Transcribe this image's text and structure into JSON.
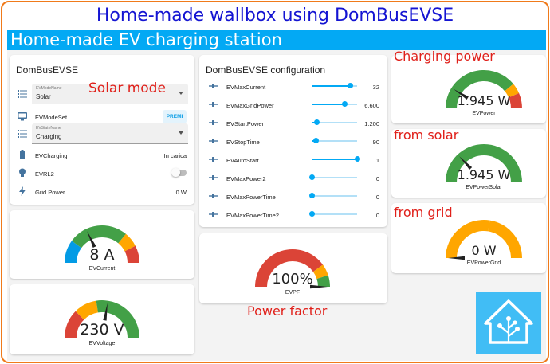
{
  "title": "Home-made wallbox using DomBusEVSE",
  "banner": "Home-made EV charging station",
  "left_card": {
    "title": "DomBusEVSE",
    "mode_select": {
      "label": "EVModeName",
      "value": "Solar"
    },
    "mode_set": {
      "label": "EVModeSet",
      "button": "PREMI"
    },
    "state_select": {
      "label": "EVStateName",
      "value": "Charging"
    },
    "charging": {
      "label": "EVCharging",
      "value": "In carica"
    },
    "rl2": {
      "label": "EVRL2"
    },
    "grid_power": {
      "label": "Grid Power",
      "value": "0 W"
    }
  },
  "config_card": {
    "title": "DomBusEVSE configuration",
    "rows": [
      {
        "label": "EVMaxCurrent",
        "value": "32",
        "fill": 0.85
      },
      {
        "label": "EVMaxGridPower",
        "value": "6.600",
        "fill": 0.72
      },
      {
        "label": "EVStartPower",
        "value": "1.200",
        "fill": 0.12
      },
      {
        "label": "EVStopTime",
        "value": "90",
        "fill": 0.1
      },
      {
        "label": "EVAutoStart",
        "value": "1",
        "fill": 1.0
      },
      {
        "label": "EVMaxPower2",
        "value": "0",
        "fill": 0
      },
      {
        "label": "EVMaxPowerTime",
        "value": "0",
        "fill": 0
      },
      {
        "label": "EVMaxPowerTime2",
        "value": "0",
        "fill": 0
      }
    ]
  },
  "gauges": {
    "current": {
      "value": "8 A",
      "name": "EVCurrent",
      "level": 0.36
    },
    "voltage": {
      "value": "230 V",
      "name": "EVVoltage",
      "level": 0.55
    },
    "pf": {
      "value": "100%",
      "name": "EVPF",
      "level": 1.0
    },
    "power": {
      "value": "1.945 W",
      "name": "EVPower",
      "level": 0.18
    },
    "solar": {
      "value": "1.945 W",
      "name": "EVPowerSolar",
      "level": 0.26
    },
    "grid": {
      "value": "0 W",
      "name": "EVPowerGrid",
      "level": 0.0
    }
  },
  "annotations": {
    "solar_mode": "Solar mode",
    "charging_power": "Charging power",
    "from_solar": "from solar",
    "from_grid": "from grid",
    "power_factor": "Power factor"
  },
  "colors": {
    "banner": "#03a9f4",
    "title": "#1414d2",
    "annotation": "#e0201a",
    "gauge_green": "#43a047",
    "gauge_orange": "#ffa600",
    "gauge_red": "#db4437",
    "gauge_blue": "#039be5",
    "ha_logo": "#41bdf5"
  }
}
